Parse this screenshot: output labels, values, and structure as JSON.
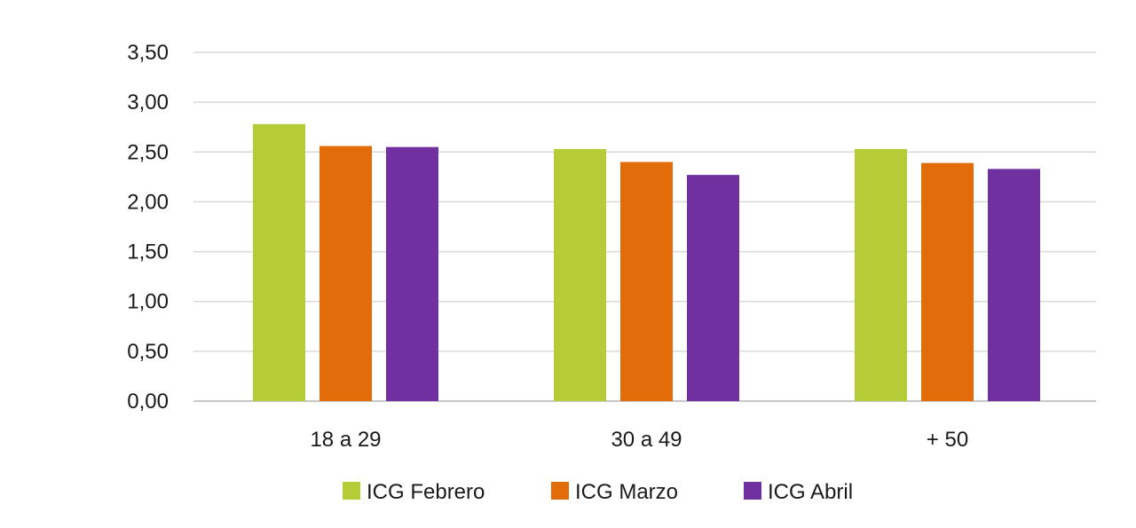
{
  "chart_data": {
    "type": "bar",
    "categories": [
      "18 a 29",
      "30 a 49",
      "+ 50"
    ],
    "series": [
      {
        "name": "ICG Febrero",
        "color": "#b5cc36",
        "values": [
          2.78,
          2.53,
          2.53
        ]
      },
      {
        "name": "ICG Marzo",
        "color": "#e36c0a",
        "values": [
          2.56,
          2.4,
          2.39
        ]
      },
      {
        "name": "ICG Abril",
        "color": "#7030a0",
        "values": [
          2.55,
          2.27,
          2.33
        ]
      }
    ],
    "ylim": [
      0,
      3.5
    ],
    "y_ticks": [
      "0,00",
      "0,50",
      "1,00",
      "1,50",
      "2,00",
      "2,50",
      "3,00",
      "3,50"
    ],
    "y_tick_values": [
      0,
      0.5,
      1,
      1.5,
      2,
      2.5,
      3,
      3.5
    ],
    "grid": true,
    "legend_position": "bottom",
    "title": "",
    "xlabel": "",
    "ylabel": ""
  }
}
